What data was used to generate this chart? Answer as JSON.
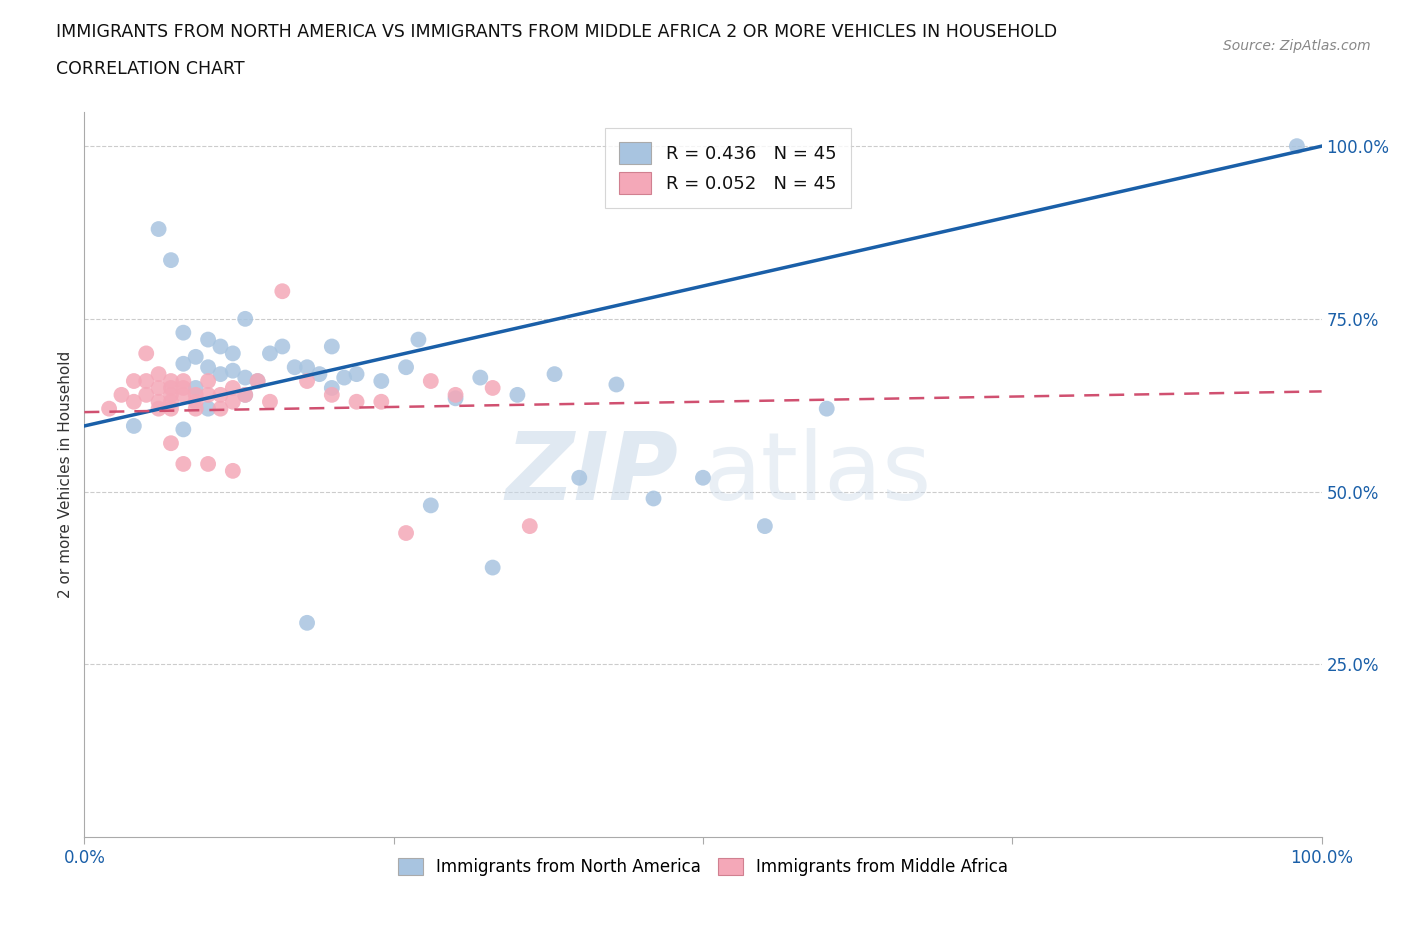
{
  "title_line1": "IMMIGRANTS FROM NORTH AMERICA VS IMMIGRANTS FROM MIDDLE AFRICA 2 OR MORE VEHICLES IN HOUSEHOLD",
  "title_line2": "CORRELATION CHART",
  "source_text": "Source: ZipAtlas.com",
  "ylabel": "2 or more Vehicles in Household",
  "xlim": [
    0.0,
    1.0
  ],
  "ylim": [
    0.0,
    1.05
  ],
  "xtick_edge_labels": [
    "0.0%",
    "100.0%"
  ],
  "xtick_edge_positions": [
    0.0,
    1.0
  ],
  "ytick_labels": [
    "25.0%",
    "50.0%",
    "75.0%",
    "100.0%"
  ],
  "ytick_positions": [
    0.25,
    0.5,
    0.75,
    1.0
  ],
  "blue_R": 0.436,
  "blue_N": 45,
  "pink_R": 0.052,
  "pink_N": 45,
  "legend_label_blue": "Immigrants from North America",
  "legend_label_pink": "Immigrants from Middle Africa",
  "blue_color": "#a8c4e0",
  "blue_line_color": "#1a5fa8",
  "pink_color": "#f4a8b8",
  "pink_line_color": "#d05070",
  "watermark_zip": "ZIP",
  "watermark_atlas": "atlas",
  "background_color": "#ffffff",
  "grid_color": "#cccccc",
  "blue_x": [
    0.04,
    0.06,
    0.07,
    0.08,
    0.08,
    0.09,
    0.09,
    0.1,
    0.1,
    0.11,
    0.11,
    0.12,
    0.12,
    0.13,
    0.13,
    0.14,
    0.15,
    0.16,
    0.17,
    0.18,
    0.19,
    0.2,
    0.21,
    0.22,
    0.24,
    0.26,
    0.28,
    0.3,
    0.32,
    0.35,
    0.38,
    0.4,
    0.43,
    0.46,
    0.5,
    0.55,
    0.6,
    0.27,
    0.2,
    0.13,
    0.1,
    0.08,
    0.33,
    0.18,
    0.98
  ],
  "blue_y": [
    0.595,
    0.88,
    0.835,
    0.685,
    0.73,
    0.695,
    0.65,
    0.68,
    0.72,
    0.67,
    0.71,
    0.675,
    0.7,
    0.665,
    0.64,
    0.66,
    0.7,
    0.71,
    0.68,
    0.68,
    0.67,
    0.65,
    0.665,
    0.67,
    0.66,
    0.68,
    0.48,
    0.635,
    0.665,
    0.64,
    0.67,
    0.52,
    0.655,
    0.49,
    0.52,
    0.45,
    0.62,
    0.72,
    0.71,
    0.75,
    0.62,
    0.59,
    0.39,
    0.31,
    1.0
  ],
  "pink_x": [
    0.02,
    0.03,
    0.04,
    0.04,
    0.05,
    0.05,
    0.05,
    0.06,
    0.06,
    0.06,
    0.06,
    0.07,
    0.07,
    0.07,
    0.07,
    0.07,
    0.08,
    0.08,
    0.08,
    0.09,
    0.09,
    0.09,
    0.1,
    0.1,
    0.11,
    0.11,
    0.12,
    0.12,
    0.13,
    0.14,
    0.15,
    0.16,
    0.18,
    0.2,
    0.22,
    0.24,
    0.26,
    0.28,
    0.3,
    0.33,
    0.36,
    0.07,
    0.08,
    0.1,
    0.12
  ],
  "pink_y": [
    0.62,
    0.64,
    0.63,
    0.66,
    0.66,
    0.64,
    0.7,
    0.63,
    0.65,
    0.67,
    0.62,
    0.64,
    0.65,
    0.66,
    0.63,
    0.62,
    0.64,
    0.65,
    0.66,
    0.63,
    0.62,
    0.64,
    0.64,
    0.66,
    0.62,
    0.64,
    0.63,
    0.65,
    0.64,
    0.66,
    0.63,
    0.79,
    0.66,
    0.64,
    0.63,
    0.63,
    0.44,
    0.66,
    0.64,
    0.65,
    0.45,
    0.57,
    0.54,
    0.54,
    0.53
  ]
}
